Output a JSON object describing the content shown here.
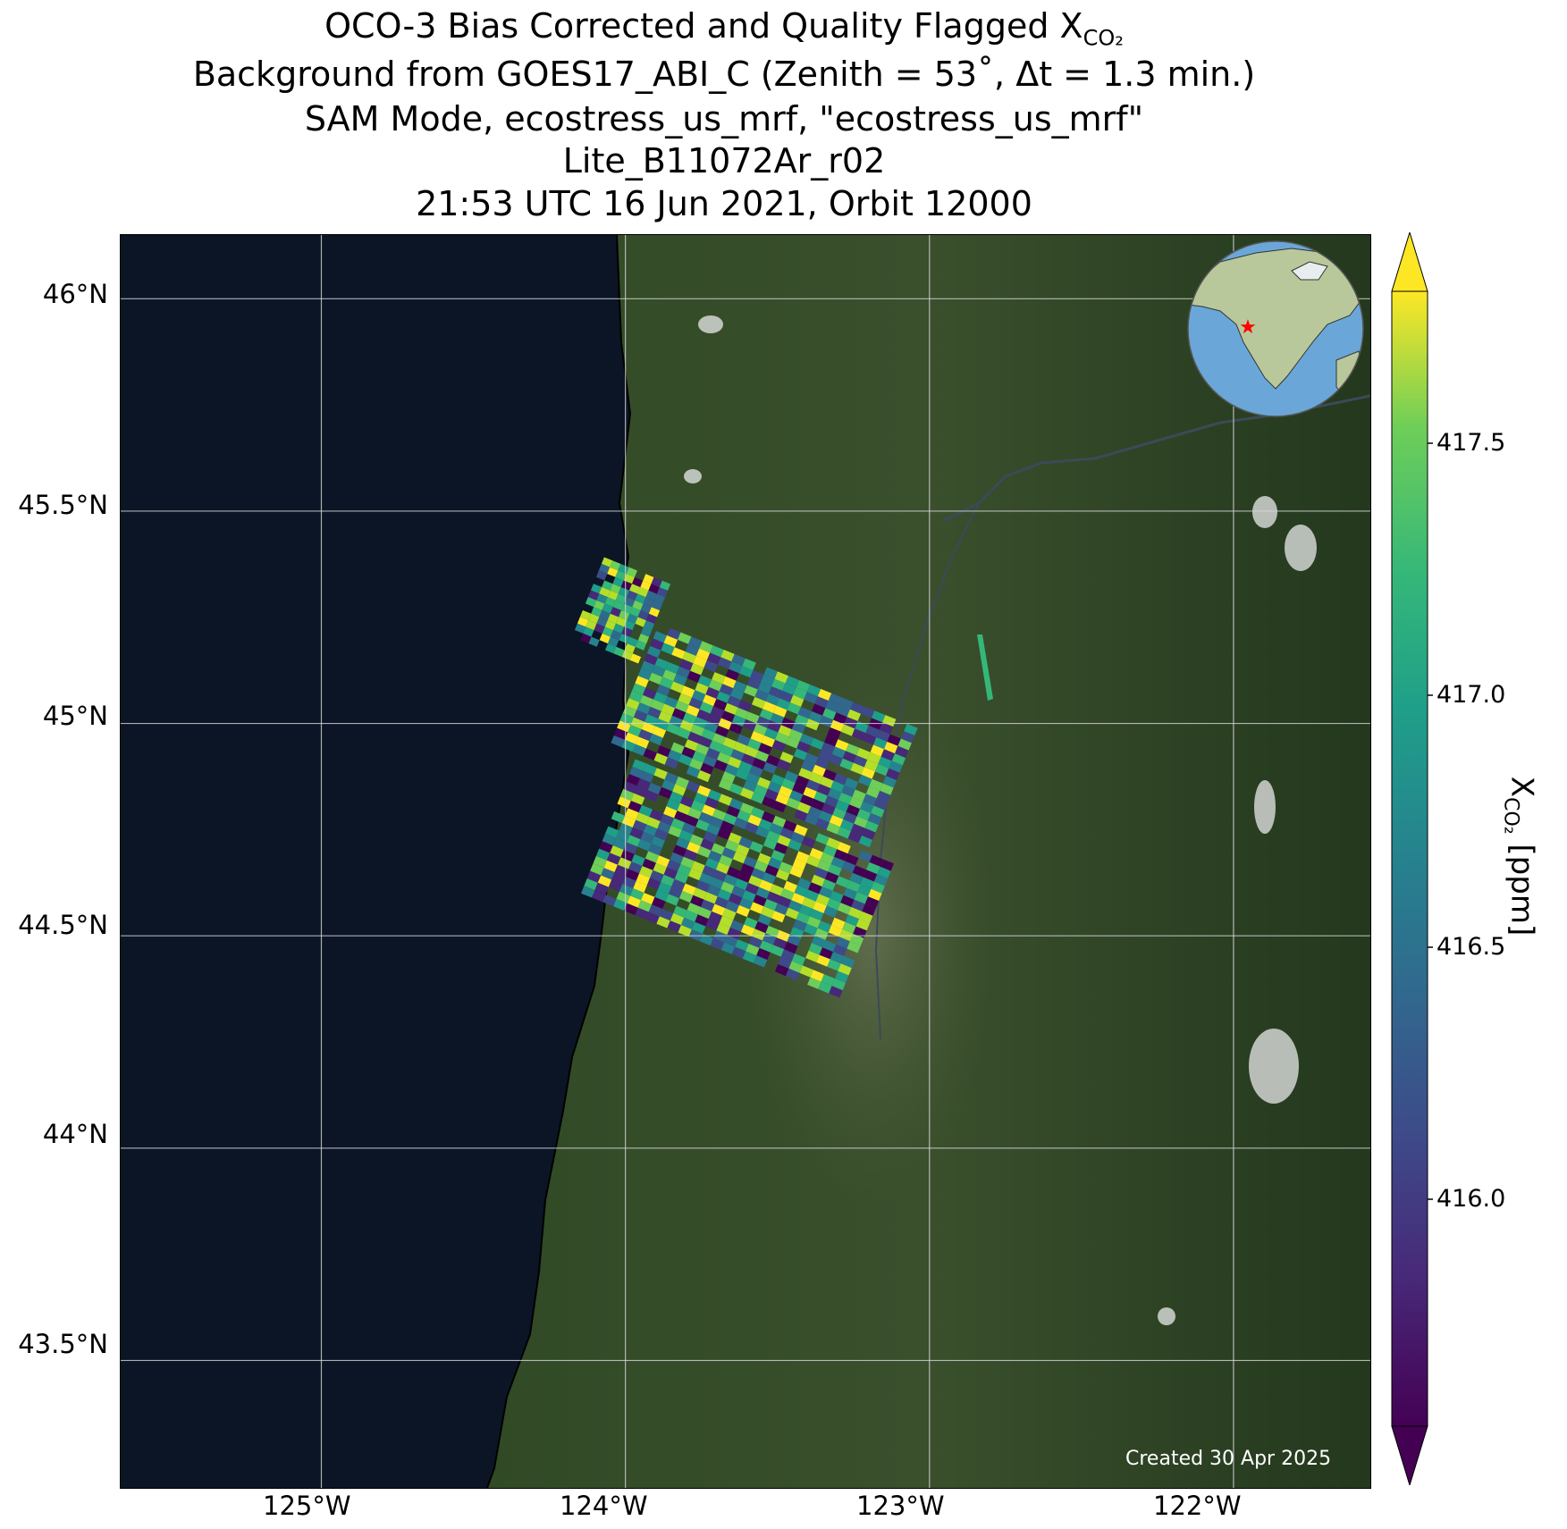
{
  "title": {
    "line1_prefix": "OCO-3 Bias Corrected and Quality Flagged X",
    "line1_sub": "CO₂",
    "line2": "Background from GOES17_ABI_C (Zenith = 53˚, Δt =  1.3 min.)",
    "line3": "SAM Mode, ecostress_us_mrf, \"ecostress_us_mrf\"",
    "line4": "Lite_B11072Ar_r02",
    "line5": "21:53 UTC 16 Jun 2021, Orbit 12000"
  },
  "axes": {
    "lat_labels": [
      "46°N",
      "45.5°N",
      "45°N",
      "44.5°N",
      "44°N",
      "43.5°N"
    ],
    "lon_labels": [
      "125°W",
      "124°W",
      "123°W",
      "122°W"
    ]
  },
  "colorbar": {
    "title_prefix": "X",
    "title_sub": "CO₂",
    "title_suffix": " [ppm]",
    "tick_labels": [
      "417.5",
      "417.0",
      "416.5",
      "416.0"
    ],
    "range": [
      415.5,
      417.8
    ],
    "colormap": "viridis",
    "extend": "both"
  },
  "footer": {
    "created": "Created 30 Apr 2025"
  },
  "colors": {
    "ocean": "#0b1526",
    "land": "#2c4122",
    "valley": "#5a6a48",
    "gridline": "#d6d6d6",
    "globe_ocean": "#6aa7d8",
    "globe_land": "#b9c89a",
    "marker": "#ff0000"
  },
  "inset": {
    "marker_name": "location-marker",
    "region": "North America"
  },
  "map_extent": {
    "lon": [
      -125.66,
      -121.55
    ],
    "lat": [
      43.2,
      46.15
    ]
  }
}
